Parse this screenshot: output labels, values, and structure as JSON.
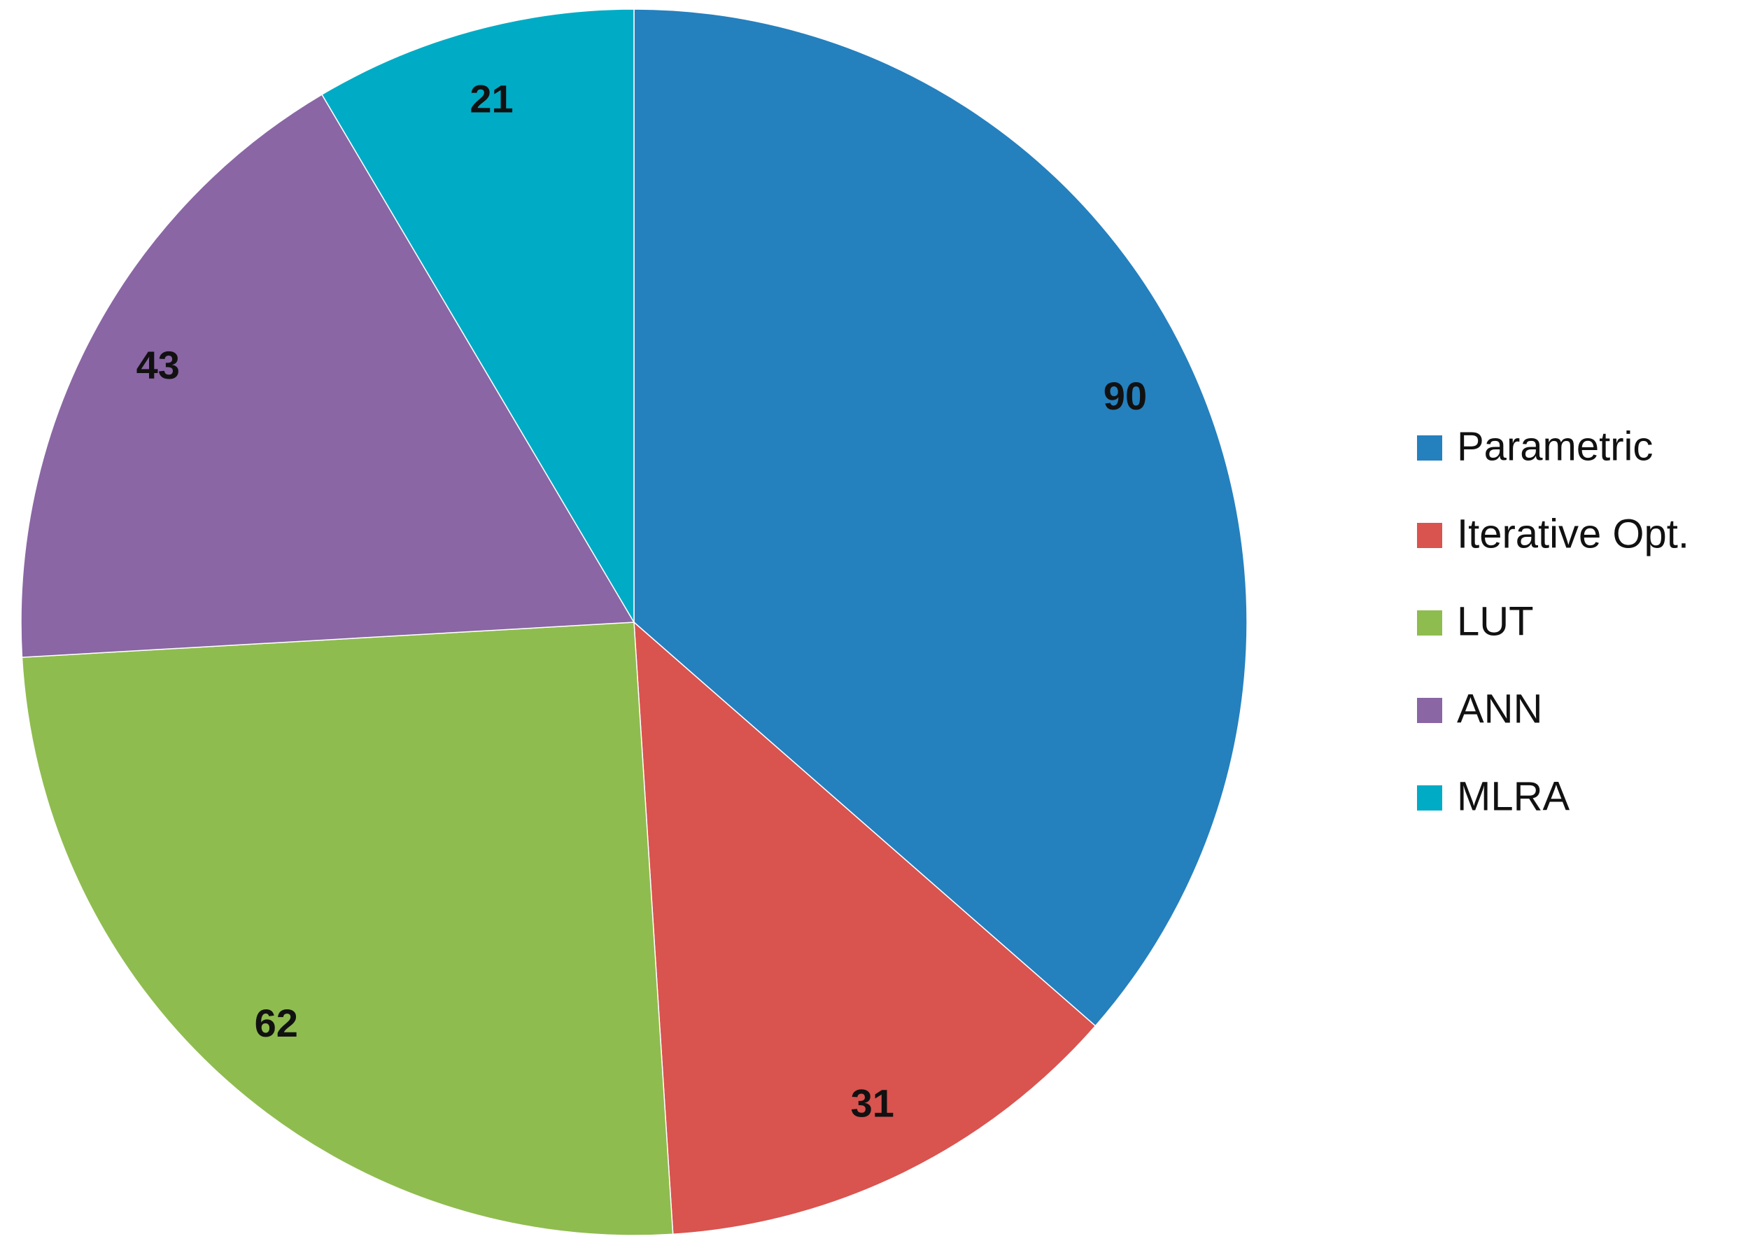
{
  "chart_data": {
    "type": "pie",
    "categories": [
      "Parametric",
      "Iterative Opt.",
      "LUT",
      "ANN",
      "MLRA"
    ],
    "values": [
      90,
      31,
      62,
      43,
      21
    ],
    "colors": [
      "#2580be",
      "#d9534f",
      "#8fbc4f",
      "#8a66a5",
      "#00abc5"
    ],
    "legend": "right"
  }
}
